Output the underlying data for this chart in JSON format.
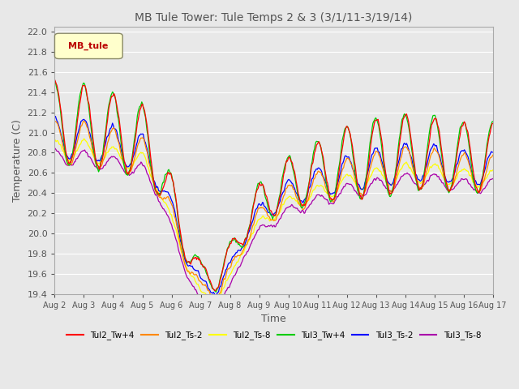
{
  "title": "MB Tule Tower: Tule Temps 2 & 3 (3/1/11-3/19/14)",
  "xlabel": "Time",
  "ylabel": "Temperature (C)",
  "ylim": [
    19.4,
    22.05
  ],
  "yticks": [
    19.4,
    19.6,
    19.8,
    20.0,
    20.2,
    20.4,
    20.6,
    20.8,
    21.0,
    21.2,
    21.4,
    21.6,
    21.8,
    22.0
  ],
  "xtick_labels": [
    "Aug 2",
    "Aug 3",
    "Aug 4",
    "Aug 5",
    "Aug 6",
    "Aug 7",
    "Aug 8",
    "Aug 9",
    "Aug 10",
    "Aug 11",
    "Aug 12",
    "Aug 13",
    "Aug 14",
    "Aug 15",
    "Aug 16",
    "Aug 17"
  ],
  "legend_label": "MB_tule",
  "series_colors": {
    "Tul2_Tw+4": "#ff0000",
    "Tul2_Ts-2": "#ff8800",
    "Tul2_Ts-8": "#ffff00",
    "Tul3_Tw+4": "#00cc00",
    "Tul3_Ts-2": "#0000ff",
    "Tul3_Ts-8": "#aa00aa"
  },
  "background_color": "#e8e8e8",
  "plot_bg_color": "#e8e8e8",
  "grid_color": "#ffffff",
  "n_points": 600
}
